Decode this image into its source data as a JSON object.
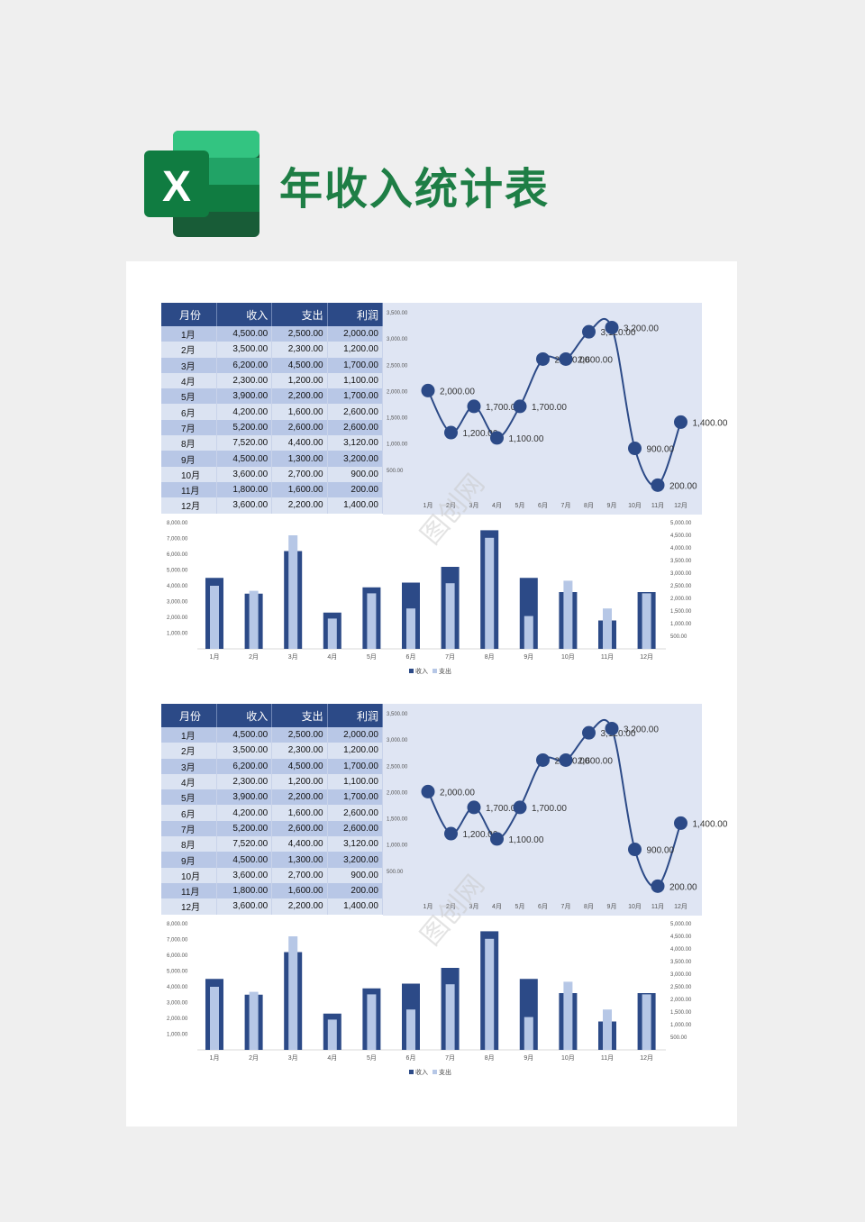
{
  "page": {
    "title": "年收入统计表",
    "logo_letter": "X",
    "watermark": "图创网"
  },
  "table": {
    "headers": [
      "月份",
      "收入",
      "支出",
      "利润"
    ],
    "rows": [
      [
        "1月",
        "4,500.00",
        "2,500.00",
        "2,000.00"
      ],
      [
        "2月",
        "3,500.00",
        "2,300.00",
        "1,200.00"
      ],
      [
        "3月",
        "6,200.00",
        "4,500.00",
        "1,700.00"
      ],
      [
        "4月",
        "2,300.00",
        "1,200.00",
        "1,100.00"
      ],
      [
        "5月",
        "3,900.00",
        "2,200.00",
        "1,700.00"
      ],
      [
        "6月",
        "4,200.00",
        "1,600.00",
        "2,600.00"
      ],
      [
        "7月",
        "5,200.00",
        "2,600.00",
        "2,600.00"
      ],
      [
        "8月",
        "7,520.00",
        "4,400.00",
        "3,120.00"
      ],
      [
        "9月",
        "4,500.00",
        "1,300.00",
        "3,200.00"
      ],
      [
        "10月",
        "3,600.00",
        "2,700.00",
        "900.00"
      ],
      [
        "11月",
        "1,800.00",
        "1,600.00",
        "200.00"
      ],
      [
        "12月",
        "3,600.00",
        "2,200.00",
        "1,400.00"
      ]
    ]
  },
  "colors": {
    "dark_bar": "#2c4a87",
    "light_bar": "#b6c7e6",
    "line": "#2c4a87",
    "line_bg": "#dfe5f3",
    "title_green": "#1e7e45"
  },
  "chart_data": [
    {
      "type": "line",
      "categories": [
        "1月",
        "2月",
        "3月",
        "4月",
        "5月",
        "6月",
        "7月",
        "8月",
        "9月",
        "10月",
        "11月",
        "12月"
      ],
      "series": [
        {
          "values": [
            2000,
            1200,
            1700,
            1100,
            1700,
            2600,
            2600,
            3120,
            3200,
            900,
            200,
            1400
          ]
        }
      ],
      "data_labels": [
        "2,000.00",
        "1,200.00",
        "1,700.00",
        "1,100.00",
        "1,700.00",
        "2,600.00",
        "2,600.00",
        "3,120.00",
        "3,200.00",
        "900.00",
        "200.00",
        "1,400.00"
      ],
      "y_ticks": [
        "500.00",
        "1,000.00",
        "1,500.00",
        "2,000.00",
        "2,500.00",
        "3,000.00",
        "3,500.00"
      ],
      "ylim": [
        0,
        3500
      ]
    },
    {
      "type": "bar",
      "categories": [
        "1月",
        "2月",
        "3月",
        "4月",
        "5月",
        "6月",
        "7月",
        "8月",
        "9月",
        "10月",
        "11月",
        "12月"
      ],
      "series": [
        {
          "name": "收入",
          "values": [
            4500,
            3500,
            6200,
            2300,
            3900,
            4200,
            5200,
            7520,
            4500,
            3600,
            1800,
            3600
          ],
          "axis": "left"
        },
        {
          "name": "支出",
          "values": [
            2500,
            2300,
            4500,
            1200,
            2200,
            1600,
            2600,
            4400,
            1300,
            2700,
            1600,
            2200
          ],
          "axis": "right"
        }
      ],
      "y_left_ticks": [
        "1,000.00",
        "2,000.00",
        "3,000.00",
        "4,000.00",
        "5,000.00",
        "6,000.00",
        "7,000.00",
        "8,000.00"
      ],
      "y_right_ticks": [
        "500.00",
        "1,000.00",
        "1,500.00",
        "2,000.00",
        "2,500.00",
        "3,000.00",
        "3,500.00",
        "4,000.00",
        "4,500.00",
        "5,000.00"
      ],
      "ylim_left": [
        0,
        8000
      ],
      "ylim_right": [
        0,
        5000
      ],
      "legend": "bottom"
    }
  ]
}
